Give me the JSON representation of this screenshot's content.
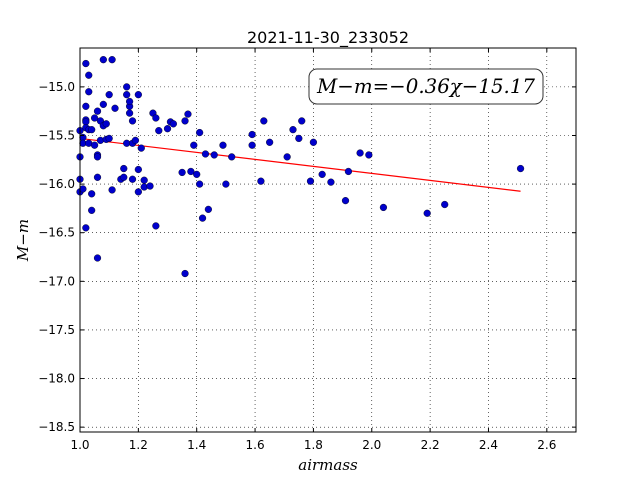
{
  "chart_data": {
    "type": "scatter",
    "title": "2021-11-30_233052",
    "xlabel": "airmass",
    "ylabel": "M−m",
    "xlim": [
      1.0,
      2.7
    ],
    "ylim": [
      -18.55,
      -14.6
    ],
    "inverted_y": false,
    "grid": true,
    "x_ticks": [
      1.0,
      1.2,
      1.4,
      1.6,
      1.8,
      2.0,
      2.2,
      2.4,
      2.6
    ],
    "x_tick_labels": [
      "1.0",
      "1.2",
      "1.4",
      "1.6",
      "1.8",
      "2.0",
      "2.2",
      "2.4",
      "2.6"
    ],
    "y_ticks": [
      -15.0,
      -15.5,
      -16.0,
      -16.5,
      -17.0,
      -17.5,
      -18.0,
      -18.5
    ],
    "y_tick_labels": [
      "−15.0",
      "−15.5",
      "−16.0",
      "−16.5",
      "−17.0",
      "−17.5",
      "−18.0",
      "−18.5"
    ],
    "annotation": "M−m=−0.36χ−15.17",
    "fit_line": {
      "slope": -0.36,
      "intercept": -15.17,
      "x_range": [
        1.0,
        2.51
      ],
      "color": "#ff0000"
    },
    "marker_color": "#0000cc",
    "series": [
      {
        "x": [
          1.0,
          1.0,
          1.0,
          1.0,
          1.01,
          1.01,
          1.01,
          1.02,
          1.02,
          1.02,
          1.02,
          1.02,
          1.02,
          1.03,
          1.03,
          1.03,
          1.03,
          1.04,
          1.04,
          1.04,
          1.05,
          1.05,
          1.06,
          1.06,
          1.06,
          1.06,
          1.06,
          1.07,
          1.07,
          1.08,
          1.08,
          1.08,
          1.09,
          1.09,
          1.1,
          1.1,
          1.11,
          1.11,
          1.12,
          1.14,
          1.15,
          1.15,
          1.16,
          1.16,
          1.16,
          1.17,
          1.17,
          1.17,
          1.18,
          1.18,
          1.18,
          1.19,
          1.2,
          1.2,
          1.2,
          1.21,
          1.22,
          1.22,
          1.24,
          1.25,
          1.26,
          1.26,
          1.27,
          1.3,
          1.31,
          1.32,
          1.35,
          1.36,
          1.36,
          1.37,
          1.38,
          1.39,
          1.4,
          1.41,
          1.41,
          1.42,
          1.43,
          1.44,
          1.46,
          1.49,
          1.5,
          1.52,
          1.59,
          1.59,
          1.62,
          1.63,
          1.65,
          1.71,
          1.73,
          1.75,
          1.76,
          1.79,
          1.8,
          1.83,
          1.86,
          1.91,
          1.92,
          1.96,
          1.99,
          2.04,
          2.19,
          2.25,
          2.51
        ],
        "y": [
          -15.45,
          -15.72,
          -15.95,
          -16.08,
          -15.52,
          -15.58,
          -16.05,
          -14.76,
          -15.2,
          -15.34,
          -15.36,
          -15.42,
          -16.45,
          -14.88,
          -15.05,
          -15.44,
          -15.58,
          -15.44,
          -16.1,
          -16.27,
          -15.32,
          -15.6,
          -15.25,
          -15.7,
          -15.72,
          -15.93,
          -16.76,
          -15.35,
          -15.55,
          -14.72,
          -15.18,
          -15.4,
          -15.38,
          -15.54,
          -15.08,
          -15.53,
          -14.72,
          -16.06,
          -15.22,
          -15.95,
          -15.84,
          -15.93,
          -15.0,
          -15.08,
          -15.58,
          -15.2,
          -15.15,
          -15.27,
          -15.35,
          -15.95,
          -15.58,
          -15.55,
          -15.85,
          -15.08,
          -16.08,
          -15.63,
          -15.96,
          -16.03,
          -16.02,
          -15.27,
          -15.32,
          -16.43,
          -15.45,
          -15.43,
          -15.36,
          -15.38,
          -15.88,
          -16.92,
          -15.35,
          -15.28,
          -15.87,
          -15.6,
          -15.9,
          -15.47,
          -16.0,
          -16.35,
          -15.69,
          -16.26,
          -15.7,
          -15.6,
          -16.0,
          -15.72,
          -15.6,
          -15.49,
          -15.97,
          -15.35,
          -15.57,
          -15.72,
          -15.44,
          -15.53,
          -15.35,
          -15.97,
          -15.57,
          -15.9,
          -15.98,
          -16.17,
          -15.87,
          -15.68,
          -15.7,
          -16.24,
          -16.3,
          -16.21,
          -15.84
        ]
      }
    ]
  }
}
